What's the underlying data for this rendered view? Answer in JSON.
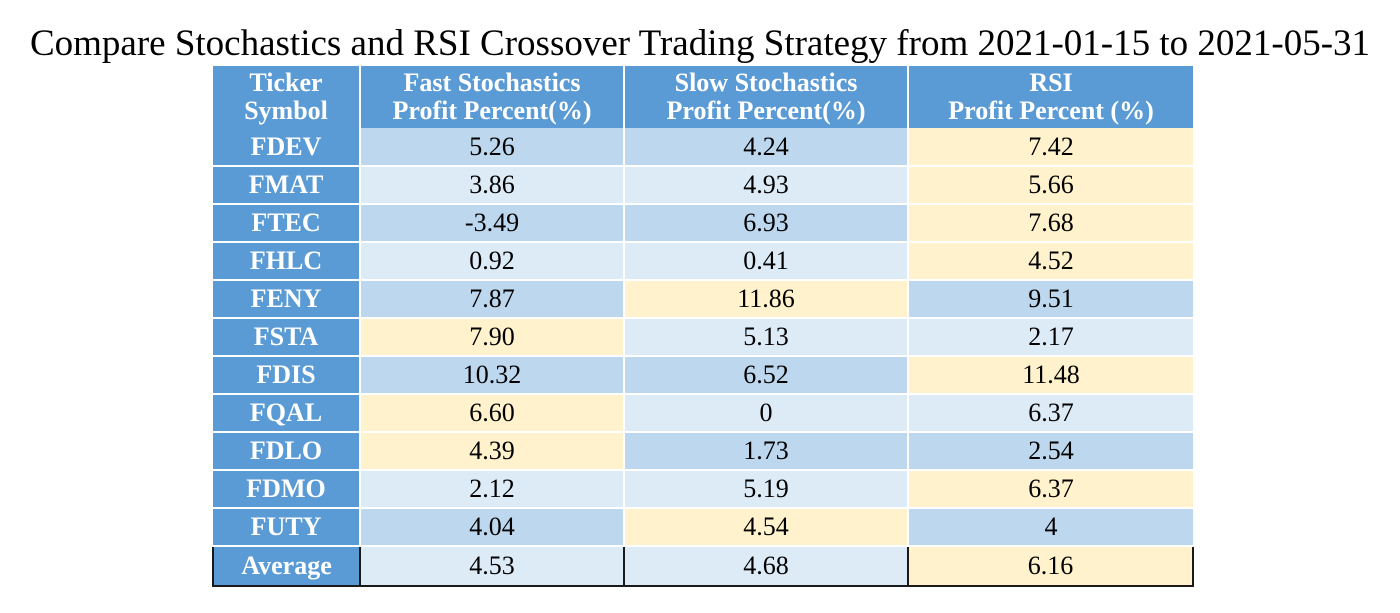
{
  "chart_data": {
    "type": "table",
    "title": "Compare Stochastics and RSI Crossover Trading Strategy from  2021-01-15 to 2021-05-31",
    "columns": [
      [
        "Ticker",
        "Symbol"
      ],
      [
        "Fast Stochastics",
        "Profit Percent(%)"
      ],
      [
        "Slow Stochastics",
        "Profit Percent(%)"
      ],
      [
        "RSI",
        "Profit Percent (%)"
      ]
    ],
    "rows": [
      {
        "ticker": "FDEV",
        "values": [
          "5.26",
          "4.24",
          "7.42"
        ],
        "shade": [
          "dark",
          "dark",
          "yellow"
        ]
      },
      {
        "ticker": "FMAT",
        "values": [
          "3.86",
          "4.93",
          "5.66"
        ],
        "shade": [
          "light",
          "light",
          "yellow"
        ]
      },
      {
        "ticker": "FTEC",
        "values": [
          "-3.49",
          "6.93",
          "7.68"
        ],
        "shade": [
          "dark",
          "dark",
          "yellow"
        ]
      },
      {
        "ticker": "FHLC",
        "values": [
          "0.92",
          "0.41",
          "4.52"
        ],
        "shade": [
          "light",
          "light",
          "yellow"
        ]
      },
      {
        "ticker": "FENY",
        "values": [
          "7.87",
          "11.86",
          "9.51"
        ],
        "shade": [
          "dark",
          "yellow",
          "dark"
        ]
      },
      {
        "ticker": "FSTA",
        "values": [
          "7.90",
          "5.13",
          "2.17"
        ],
        "shade": [
          "yellow",
          "light",
          "light"
        ]
      },
      {
        "ticker": "FDIS",
        "values": [
          "10.32",
          "6.52",
          "11.48"
        ],
        "shade": [
          "dark",
          "dark",
          "yellow"
        ]
      },
      {
        "ticker": "FQAL",
        "values": [
          "6.60",
          "0",
          "6.37"
        ],
        "shade": [
          "yellow",
          "light",
          "light"
        ]
      },
      {
        "ticker": "FDLO",
        "values": [
          "4.39",
          "1.73",
          "2.54"
        ],
        "shade": [
          "yellow",
          "dark",
          "dark"
        ]
      },
      {
        "ticker": "FDMO",
        "values": [
          "2.12",
          "5.19",
          "6.37"
        ],
        "shade": [
          "light",
          "light",
          "yellow"
        ]
      },
      {
        "ticker": "FUTY",
        "values": [
          "4.04",
          "4.54",
          "4"
        ],
        "shade": [
          "dark",
          "yellow",
          "dark"
        ]
      }
    ],
    "footer": {
      "label": "Average",
      "values": [
        "4.53",
        "4.68",
        "6.16"
      ],
      "shade": [
        "light",
        "light",
        "yellow"
      ]
    },
    "colors": {
      "header": "#5b9bd5",
      "dark": "#bdd7ee",
      "light": "#ddebf7",
      "yellow": "#fff2cc"
    }
  }
}
